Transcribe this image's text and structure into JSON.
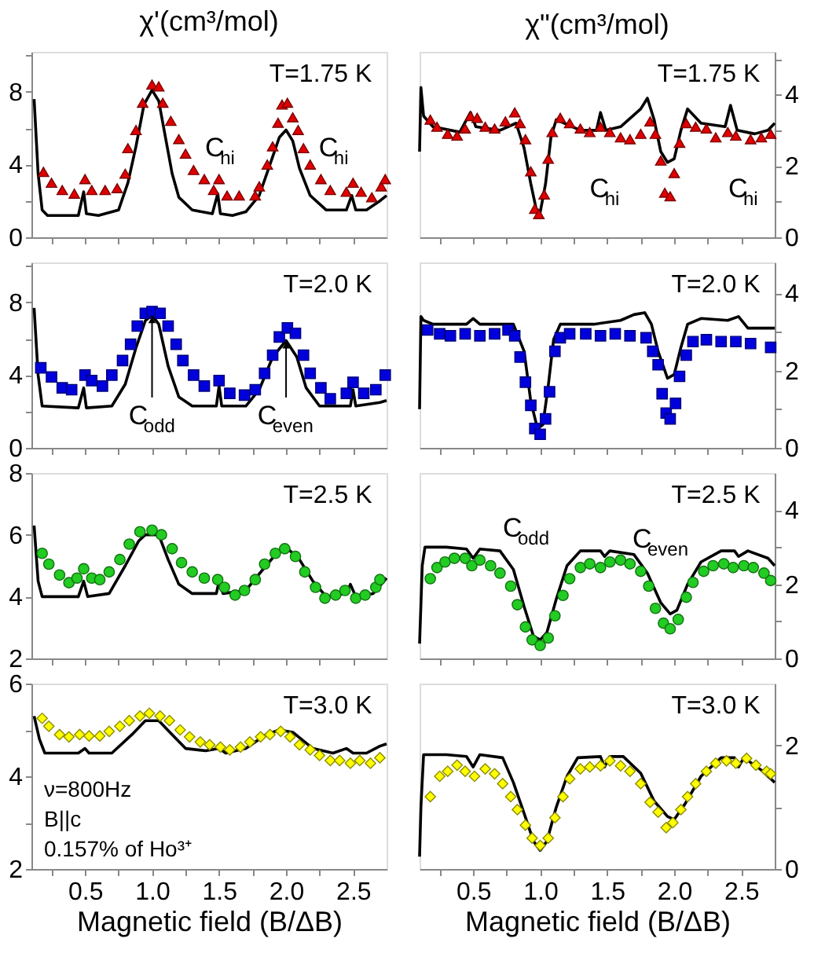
{
  "chart_data": [
    {
      "type": "scatter",
      "title": "χ'(cm³/mol)",
      "xlim": [
        0.1,
        2.75
      ],
      "ylim": [
        0,
        10.2
      ],
      "tick_labels": "y",
      "xticks": [
        {
          "value": 0.25,
          "label": null
        },
        {
          "value": 0.5,
          "label": null
        },
        {
          "value": 0.75,
          "label": null
        },
        {
          "value": 1.0,
          "label": null
        },
        {
          "value": 1.25,
          "label": null
        },
        {
          "value": 1.5,
          "label": null
        },
        {
          "value": 1.75,
          "label": null
        },
        {
          "value": 2.0,
          "label": null
        },
        {
          "value": 2.25,
          "label": null
        },
        {
          "value": 2.5,
          "label": null
        }
      ],
      "yticks": [
        0,
        {
          "value": 2,
          "label": null
        },
        4,
        {
          "value": 6,
          "label": null
        },
        8,
        {
          "value": 10,
          "label": null
        }
      ],
      "annotations": [
        "T=1.75 K",
        "C$_{hi}$",
        "C$_{hi}$"
      ],
      "series": [
        {
          "type": "line",
          "color": "#000000",
          "x": [
            0.12,
            0.15,
            0.18,
            0.22,
            0.45,
            0.49,
            0.51,
            0.6,
            0.75,
            0.82,
            0.88,
            0.94,
            1.0,
            1.05,
            1.1,
            1.15,
            1.2,
            1.3,
            1.45,
            1.49,
            1.51,
            1.6,
            1.7,
            1.8,
            1.88,
            1.95,
            2.0,
            2.05,
            2.1,
            2.18,
            2.3,
            2.45,
            2.49,
            2.52,
            2.6,
            2.7,
            2.75
          ],
          "values": [
            7.6,
            3.5,
            1.5,
            1.2,
            1.2,
            2.5,
            1.3,
            1.2,
            1.5,
            3.0,
            5.0,
            7.3,
            8.1,
            7.5,
            5.5,
            3.5,
            2.2,
            1.5,
            1.3,
            2.4,
            1.3,
            1.2,
            1.4,
            2.3,
            4.0,
            5.5,
            5.9,
            5.3,
            3.8,
            2.3,
            1.5,
            1.5,
            2.3,
            1.5,
            1.5,
            2.0,
            2.3
          ]
        },
        {
          "type": "scatter",
          "marker": "triangle",
          "color": "#e00000",
          "x": [
            0.19,
            0.25,
            0.33,
            0.42,
            0.5,
            0.55,
            0.65,
            0.74,
            0.8,
            0.82,
            0.88,
            0.93,
            1.0,
            1.05,
            1.08,
            1.14,
            1.2,
            1.25,
            1.31,
            1.39,
            1.46,
            1.5,
            1.56,
            1.65,
            1.77,
            1.8,
            1.86,
            1.9,
            1.94,
            1.97,
            2.01,
            2.05,
            2.09,
            2.13,
            2.18,
            2.26,
            2.33,
            2.45,
            2.5,
            2.56,
            2.64,
            2.71,
            2.74
          ],
          "values": [
            3.6,
            3.0,
            2.6,
            2.4,
            3.2,
            2.6,
            2.6,
            2.7,
            3.5,
            4.9,
            5.9,
            7.4,
            8.4,
            8.3,
            7.4,
            6.4,
            5.4,
            4.6,
            3.7,
            3.2,
            2.6,
            3.2,
            2.3,
            2.3,
            2.3,
            2.8,
            4.0,
            5.0,
            6.3,
            7.3,
            7.4,
            6.6,
            5.9,
            4.9,
            4.0,
            3.2,
            2.6,
            2.5,
            3.0,
            2.5,
            2.2,
            2.8,
            3.2
          ]
        }
      ]
    },
    {
      "type": "scatter",
      "title": "χ\"(cm³/mol)",
      "xlim": [
        0.1,
        2.75
      ],
      "ylim": [
        0,
        5.2
      ],
      "tick_labels": "y",
      "xticks": [
        {
          "value": 0.25,
          "label": null
        },
        {
          "value": 0.5,
          "label": null
        },
        {
          "value": 0.75,
          "label": null
        },
        {
          "value": 1.0,
          "label": null
        },
        {
          "value": 1.25,
          "label": null
        },
        {
          "value": 1.5,
          "label": null
        },
        {
          "value": 1.75,
          "label": null
        },
        {
          "value": 2.0,
          "label": null
        },
        {
          "value": 2.25,
          "label": null
        },
        {
          "value": 2.5,
          "label": null
        }
      ],
      "yticks": [
        0,
        {
          "value": 1,
          "label": null
        },
        2,
        {
          "value": 3,
          "label": null
        },
        4,
        {
          "value": 5,
          "label": null
        }
      ],
      "annotations": [
        "T=1.75 K",
        "C$_{hi}$",
        "C$_{hi}$"
      ],
      "series": [
        {
          "type": "line",
          "color": "#000000",
          "x": [
            0.1,
            0.11,
            0.13,
            0.2,
            0.4,
            0.48,
            0.52,
            0.7,
            0.82,
            0.88,
            0.93,
            0.97,
            1.0,
            1.04,
            1.08,
            1.12,
            1.3,
            1.42,
            1.45,
            1.49,
            1.6,
            1.75,
            1.8,
            1.85,
            1.9,
            1.95,
            2.0,
            2.05,
            2.1,
            2.2,
            2.38,
            2.42,
            2.47,
            2.6,
            2.7,
            2.75
          ],
          "values": [
            2.4,
            4.2,
            3.4,
            3.1,
            2.95,
            3.5,
            3.1,
            3.0,
            3.2,
            2.5,
            1.5,
            0.8,
            0.7,
            1.5,
            2.8,
            3.3,
            3.0,
            3.0,
            3.5,
            3.0,
            3.1,
            3.6,
            3.9,
            3.3,
            2.4,
            2.1,
            2.2,
            3.0,
            3.6,
            3.2,
            3.1,
            3.7,
            3.0,
            2.9,
            3.0,
            3.2
          ]
        },
        {
          "type": "scatter",
          "marker": "triangle",
          "color": "#e00000",
          "x": [
            0.18,
            0.23,
            0.31,
            0.38,
            0.44,
            0.48,
            0.53,
            0.59,
            0.66,
            0.74,
            0.81,
            0.85,
            0.89,
            0.93,
            0.96,
            0.99,
            1.03,
            1.06,
            1.09,
            1.15,
            1.22,
            1.3,
            1.37,
            1.45,
            1.52,
            1.6,
            1.67,
            1.75,
            1.82,
            1.86,
            1.9,
            1.93,
            1.97,
            2.0,
            2.04,
            2.09,
            2.16,
            2.24,
            2.31,
            2.4,
            2.46,
            2.57,
            2.65,
            2.72
          ],
          "values": [
            3.3,
            3.1,
            2.9,
            2.85,
            3.05,
            3.4,
            3.35,
            3.1,
            3.05,
            3.25,
            3.5,
            3.2,
            2.75,
            1.85,
            0.8,
            0.65,
            1.2,
            2.2,
            2.95,
            3.35,
            3.2,
            3.05,
            2.95,
            3.1,
            2.95,
            2.8,
            2.75,
            2.9,
            3.25,
            2.9,
            2.15,
            1.25,
            1.15,
            1.8,
            2.65,
            3.2,
            3.1,
            3.05,
            2.8,
            2.95,
            2.85,
            2.75,
            2.8,
            2.9
          ]
        }
      ]
    },
    {
      "type": "scatter",
      "xlim": [
        0.1,
        2.75
      ],
      "ylim": [
        0,
        10.2
      ],
      "tick_labels": "y",
      "xticks": [
        {
          "value": 0.25,
          "label": null
        },
        {
          "value": 0.5,
          "label": null
        },
        {
          "value": 0.75,
          "label": null
        },
        {
          "value": 1.0,
          "label": null
        },
        {
          "value": 1.25,
          "label": null
        },
        {
          "value": 1.5,
          "label": null
        },
        {
          "value": 1.75,
          "label": null
        },
        {
          "value": 2.0,
          "label": null
        },
        {
          "value": 2.25,
          "label": null
        },
        {
          "value": 2.5,
          "label": null
        }
      ],
      "yticks": [
        0,
        {
          "value": 2,
          "label": null
        },
        4,
        {
          "value": 6,
          "label": null
        },
        8,
        {
          "value": 10,
          "label": null
        }
      ],
      "annotations": [
        "T=2.0 K",
        {
          "text": "C$_{odd}$",
          "x": 1.0,
          "y": 7.3
        },
        {
          "text": "C$_{even}$",
          "x": 2.0,
          "y": 5.9
        }
      ],
      "series": [
        {
          "type": "line",
          "color": "#000000",
          "x": [
            0.12,
            0.15,
            0.18,
            0.45,
            0.49,
            0.51,
            0.7,
            0.8,
            0.88,
            0.95,
            1.0,
            1.05,
            1.12,
            1.2,
            1.3,
            1.48,
            1.5,
            1.52,
            1.7,
            1.8,
            1.9,
            2.0,
            2.08,
            2.15,
            2.25,
            2.48,
            2.5,
            2.52,
            2.7,
            2.75
          ],
          "values": [
            7.7,
            4.0,
            2.3,
            2.2,
            3.3,
            2.2,
            2.3,
            3.5,
            5.5,
            7.0,
            7.3,
            6.8,
            4.5,
            2.8,
            2.3,
            2.3,
            3.4,
            2.3,
            2.3,
            3.2,
            5.0,
            5.9,
            5.0,
            3.3,
            2.3,
            2.3,
            3.2,
            2.3,
            2.5,
            2.6
          ]
        },
        {
          "type": "scatter",
          "marker": "square",
          "color": "#0000dd",
          "x": [
            0.17,
            0.25,
            0.33,
            0.4,
            0.5,
            0.55,
            0.63,
            0.7,
            0.78,
            0.84,
            0.89,
            0.95,
            1.0,
            1.06,
            1.12,
            1.18,
            1.23,
            1.31,
            1.39,
            1.5,
            1.58,
            1.69,
            1.77,
            1.84,
            1.9,
            1.95,
            2.01,
            2.07,
            2.13,
            2.18,
            2.26,
            2.33,
            2.45,
            2.5,
            2.58,
            2.67,
            2.74
          ],
          "values": [
            4.4,
            3.9,
            3.3,
            3.2,
            4.0,
            3.7,
            3.4,
            4.0,
            4.8,
            5.7,
            6.7,
            7.4,
            7.5,
            7.4,
            6.7,
            5.7,
            4.8,
            4.0,
            3.4,
            3.7,
            3.0,
            2.9,
            3.2,
            4.1,
            5.1,
            6.1,
            6.6,
            6.3,
            5.1,
            4.1,
            3.3,
            2.7,
            3.0,
            3.6,
            3.0,
            3.2,
            4.0
          ]
        }
      ]
    },
    {
      "type": "scatter",
      "xlim": [
        0.1,
        2.75
      ],
      "ylim": [
        0,
        4.8
      ],
      "tick_labels": "y",
      "xticks": [
        {
          "value": 0.25,
          "label": null
        },
        {
          "value": 0.5,
          "label": null
        },
        {
          "value": 0.75,
          "label": null
        },
        {
          "value": 1.0,
          "label": null
        },
        {
          "value": 1.25,
          "label": null
        },
        {
          "value": 1.5,
          "label": null
        },
        {
          "value": 1.75,
          "label": null
        },
        {
          "value": 2.0,
          "label": null
        },
        {
          "value": 2.25,
          "label": null
        },
        {
          "value": 2.5,
          "label": null
        }
      ],
      "yticks": [
        0,
        {
          "value": 1,
          "label": null
        },
        2,
        {
          "value": 3,
          "label": null
        },
        4
      ],
      "annotations": [
        "T=2.0 K"
      ],
      "series": [
        {
          "type": "line",
          "color": "#000000",
          "x": [
            0.1,
            0.11,
            0.13,
            0.2,
            0.45,
            0.5,
            0.55,
            0.8,
            0.88,
            0.93,
            0.98,
            1.02,
            1.06,
            1.1,
            1.15,
            1.4,
            1.6,
            1.7,
            1.78,
            1.83,
            1.88,
            1.95,
            2.0,
            2.05,
            2.1,
            2.2,
            2.4,
            2.48,
            2.55,
            2.75
          ],
          "values": [
            1.0,
            3.4,
            3.3,
            3.2,
            3.2,
            3.35,
            3.2,
            3.2,
            2.5,
            1.2,
            0.5,
            0.6,
            1.6,
            2.8,
            3.2,
            3.2,
            3.3,
            3.45,
            3.5,
            3.2,
            2.5,
            1.8,
            1.9,
            2.6,
            3.2,
            3.35,
            3.3,
            3.4,
            3.1,
            3.1
          ]
        },
        {
          "type": "scatter",
          "marker": "square",
          "color": "#0000dd",
          "x": [
            0.16,
            0.25,
            0.33,
            0.44,
            0.55,
            0.66,
            0.76,
            0.81,
            0.85,
            0.89,
            0.93,
            0.96,
            1.0,
            1.04,
            1.07,
            1.11,
            1.15,
            1.22,
            1.34,
            1.45,
            1.56,
            1.67,
            1.79,
            1.84,
            1.88,
            1.91,
            1.94,
            1.97,
            2.01,
            2.04,
            2.09,
            2.14,
            2.24,
            2.35,
            2.46,
            2.57,
            2.72
          ],
          "values": [
            3.05,
            2.95,
            2.9,
            2.95,
            2.9,
            2.95,
            3.05,
            2.9,
            2.35,
            1.7,
            1.1,
            0.5,
            0.35,
            0.75,
            1.45,
            2.5,
            2.85,
            2.95,
            2.95,
            2.9,
            2.95,
            2.9,
            2.85,
            2.5,
            2.15,
            1.4,
            0.9,
            0.75,
            1.15,
            1.85,
            2.4,
            2.75,
            2.8,
            2.75,
            2.75,
            2.7,
            2.6
          ]
        }
      ]
    },
    {
      "type": "scatter",
      "xlim": [
        0.1,
        2.75
      ],
      "ylim": [
        2,
        8
      ],
      "tick_labels": "y",
      "xticks": [
        {
          "value": 0.25,
          "label": null
        },
        {
          "value": 0.5,
          "label": null
        },
        {
          "value": 0.75,
          "label": null
        },
        {
          "value": 1.0,
          "label": null
        },
        {
          "value": 1.25,
          "label": null
        },
        {
          "value": 1.5,
          "label": null
        },
        {
          "value": 1.75,
          "label": null
        },
        {
          "value": 2.0,
          "label": null
        },
        {
          "value": 2.25,
          "label": null
        },
        {
          "value": 2.5,
          "label": null
        }
      ],
      "yticks": [
        2,
        4,
        6,
        8
      ],
      "annotations": [
        "T=2.5 K"
      ],
      "series": [
        {
          "type": "line",
          "color": "#000000",
          "x": [
            0.12,
            0.15,
            0.18,
            0.45,
            0.49,
            0.52,
            0.68,
            0.8,
            0.9,
            0.95,
            1.05,
            1.12,
            1.2,
            1.3,
            1.48,
            1.5,
            1.53,
            1.7,
            1.85,
            1.95,
            2.0,
            2.1,
            2.2,
            2.3,
            2.45,
            2.48,
            2.52,
            2.65,
            2.75
          ],
          "values": [
            6.3,
            4.5,
            4.0,
            4.0,
            4.5,
            4.0,
            4.1,
            5.0,
            5.8,
            6.0,
            6.0,
            5.2,
            4.4,
            4.1,
            4.1,
            4.5,
            4.1,
            4.2,
            5.0,
            5.5,
            5.6,
            5.2,
            4.5,
            4.0,
            4.1,
            4.4,
            4.0,
            4.1,
            4.6
          ]
        },
        {
          "type": "scatter",
          "marker": "circle",
          "color": "#22cc22",
          "x": [
            0.18,
            0.23,
            0.31,
            0.38,
            0.44,
            0.49,
            0.55,
            0.61,
            0.68,
            0.76,
            0.83,
            0.91,
            1.0,
            1.07,
            1.15,
            1.22,
            1.3,
            1.39,
            1.49,
            1.54,
            1.62,
            1.69,
            1.77,
            1.84,
            1.92,
            1.99,
            2.07,
            2.14,
            2.22,
            2.29,
            2.37,
            2.44,
            2.52,
            2.59,
            2.67,
            2.7
          ],
          "values": [
            5.4,
            5.05,
            4.7,
            4.45,
            4.6,
            4.9,
            4.6,
            4.55,
            4.8,
            5.2,
            5.7,
            6.1,
            6.15,
            6.0,
            5.55,
            5.1,
            4.8,
            4.6,
            4.55,
            4.3,
            4.05,
            4.2,
            4.55,
            5.05,
            5.4,
            5.55,
            5.3,
            4.8,
            4.3,
            3.95,
            4.05,
            4.2,
            3.95,
            4.05,
            4.3,
            4.55
          ]
        }
      ]
    },
    {
      "type": "scatter",
      "xlim": [
        0.1,
        2.75
      ],
      "ylim": [
        0,
        5
      ],
      "tick_labels": "y",
      "xticks": [
        {
          "value": 0.25,
          "label": null
        },
        {
          "value": 0.5,
          "label": null
        },
        {
          "value": 0.75,
          "label": null
        },
        {
          "value": 1.0,
          "label": null
        },
        {
          "value": 1.25,
          "label": null
        },
        {
          "value": 1.5,
          "label": null
        },
        {
          "value": 1.75,
          "label": null
        },
        {
          "value": 2.0,
          "label": null
        },
        {
          "value": 2.25,
          "label": null
        },
        {
          "value": 2.5,
          "label": null
        }
      ],
      "yticks": [
        0,
        {
          "value": 1,
          "label": null
        },
        2,
        {
          "value": 3,
          "label": null
        },
        4
      ],
      "annotations": [
        "T=2.5 K",
        "C$_{odd}$",
        "C$_{even}$"
      ],
      "series": [
        {
          "type": "line",
          "color": "#000000",
          "x": [
            0.1,
            0.12,
            0.14,
            0.3,
            0.45,
            0.5,
            0.55,
            0.7,
            0.8,
            0.88,
            0.95,
            1.0,
            1.05,
            1.12,
            1.2,
            1.3,
            1.45,
            1.48,
            1.52,
            1.7,
            1.8,
            1.9,
            1.97,
            2.02,
            2.1,
            2.2,
            2.35,
            2.45,
            2.48,
            2.55,
            2.7,
            2.75
          ],
          "values": [
            0.4,
            2.5,
            3.0,
            3.0,
            2.95,
            2.7,
            2.95,
            2.9,
            2.4,
            1.4,
            0.6,
            0.5,
            0.7,
            1.6,
            2.5,
            2.9,
            2.9,
            2.75,
            2.9,
            2.8,
            2.3,
            1.5,
            1.2,
            1.3,
            2.0,
            2.6,
            2.9,
            2.9,
            2.75,
            2.9,
            2.7,
            2.5
          ]
        },
        {
          "type": "scatter",
          "marker": "circle",
          "color": "#22cc22",
          "x": [
            0.18,
            0.23,
            0.29,
            0.36,
            0.44,
            0.49,
            0.55,
            0.63,
            0.7,
            0.78,
            0.83,
            0.89,
            0.94,
            1.0,
            1.06,
            1.11,
            1.17,
            1.22,
            1.3,
            1.37,
            1.45,
            1.52,
            1.6,
            1.67,
            1.75,
            1.81,
            1.86,
            1.92,
            1.97,
            2.03,
            2.09,
            2.14,
            2.22,
            2.29,
            2.37,
            2.44,
            2.52,
            2.59,
            2.67,
            2.72
          ],
          "values": [
            2.15,
            2.45,
            2.6,
            2.7,
            2.7,
            2.5,
            2.65,
            2.5,
            2.3,
            1.95,
            1.45,
            0.85,
            0.5,
            0.35,
            0.55,
            1.15,
            1.7,
            2.15,
            2.45,
            2.55,
            2.45,
            2.6,
            2.65,
            2.55,
            2.35,
            1.95,
            1.35,
            0.95,
            0.8,
            1.05,
            1.65,
            2.05,
            2.35,
            2.5,
            2.55,
            2.45,
            2.5,
            2.45,
            2.3,
            2.1
          ]
        }
      ]
    },
    {
      "type": "scatter",
      "xlim": [
        0.1,
        2.75
      ],
      "ylim": [
        2,
        6
      ],
      "xlabel": "Magnetic field (B/ΔB)",
      "xticks": [
        {
          "value": 0.25,
          "label": null
        },
        {
          "value": 0.5,
          "label": "0.5"
        },
        {
          "value": 0.75,
          "label": null
        },
        {
          "value": 1.0,
          "label": "1.0"
        },
        {
          "value": 1.25,
          "label": null
        },
        {
          "value": 1.5,
          "label": "1.5"
        },
        {
          "value": 1.75,
          "label": null
        },
        {
          "value": 2.0,
          "label": "2.0"
        },
        {
          "value": 2.25,
          "label": null
        },
        {
          "value": 2.5,
          "label": "2.5"
        }
      ],
      "yticks": [
        2,
        {
          "value": 3,
          "label": null
        },
        4,
        {
          "value": 5,
          "label": null
        },
        6
      ],
      "annotations": [
        "T=3.0 K",
        "ν=800Hz",
        "B||c",
        "0.157% of Ho³⁺"
      ],
      "series": [
        {
          "type": "line",
          "color": "#000000",
          "x": [
            0.12,
            0.16,
            0.2,
            0.45,
            0.5,
            0.53,
            0.7,
            0.85,
            0.95,
            1.05,
            1.15,
            1.25,
            1.4,
            1.5,
            1.55,
            1.7,
            1.85,
            1.95,
            2.05,
            2.2,
            2.35,
            2.45,
            2.5,
            2.6,
            2.7,
            2.75
          ],
          "values": [
            5.3,
            4.8,
            4.5,
            4.5,
            4.6,
            4.5,
            4.5,
            4.9,
            5.2,
            5.2,
            4.9,
            4.6,
            4.55,
            4.6,
            4.5,
            4.6,
            4.9,
            5.0,
            4.95,
            4.6,
            4.5,
            4.6,
            4.5,
            4.5,
            4.65,
            4.7
          ]
        },
        {
          "type": "scatter",
          "marker": "diamond",
          "color": "#ffff00",
          "x": [
            0.18,
            0.23,
            0.31,
            0.38,
            0.46,
            0.53,
            0.61,
            0.68,
            0.76,
            0.83,
            0.91,
            0.98,
            1.06,
            1.13,
            1.21,
            1.28,
            1.36,
            1.43,
            1.51,
            1.58,
            1.66,
            1.73,
            1.81,
            1.88,
            1.96,
            2.03,
            2.1,
            2.18,
            2.25,
            2.33,
            2.4,
            2.48,
            2.55,
            2.63,
            2.7
          ],
          "values": [
            5.25,
            5.08,
            4.9,
            4.85,
            4.9,
            4.87,
            4.87,
            4.97,
            5.08,
            5.2,
            5.3,
            5.36,
            5.3,
            5.2,
            5.0,
            4.85,
            4.74,
            4.68,
            4.63,
            4.57,
            4.63,
            4.74,
            4.85,
            4.9,
            4.97,
            4.85,
            4.68,
            4.57,
            4.45,
            4.34,
            4.34,
            4.28,
            4.34,
            4.28,
            4.4
          ]
        }
      ]
    },
    {
      "type": "scatter",
      "xlim": [
        0.1,
        2.75
      ],
      "ylim": [
        0,
        3
      ],
      "xlabel": "Magnetic field (B/ΔB)",
      "xticks": [
        {
          "value": 0.25,
          "label": null
        },
        {
          "value": 0.5,
          "label": "0.5"
        },
        {
          "value": 0.75,
          "label": null
        },
        {
          "value": 1.0,
          "label": "1.0"
        },
        {
          "value": 1.25,
          "label": null
        },
        {
          "value": 1.5,
          "label": "1.5"
        },
        {
          "value": 1.75,
          "label": null
        },
        {
          "value": 2.0,
          "label": "2.0"
        },
        {
          "value": 2.25,
          "label": null
        },
        {
          "value": 2.5,
          "label": "2.5"
        }
      ],
      "yticks": [
        0,
        {
          "value": 1,
          "label": null
        },
        2
      ],
      "annotations": [
        "T=3.0 K"
      ],
      "series": [
        {
          "type": "line",
          "color": "#000000",
          "x": [
            0.1,
            0.11,
            0.13,
            0.3,
            0.45,
            0.5,
            0.55,
            0.72,
            0.8,
            0.88,
            0.95,
            1.0,
            1.05,
            1.12,
            1.2,
            1.28,
            1.45,
            1.48,
            1.52,
            1.62,
            1.75,
            1.85,
            1.95,
            2.0,
            2.08,
            2.2,
            2.35,
            2.45,
            2.48,
            2.52,
            2.65,
            2.75
          ],
          "values": [
            0.2,
            1.0,
            1.85,
            1.85,
            1.82,
            1.65,
            1.85,
            1.8,
            1.4,
            0.9,
            0.45,
            0.3,
            0.45,
            1.0,
            1.5,
            1.8,
            1.82,
            1.65,
            1.82,
            1.82,
            1.55,
            1.1,
            0.85,
            0.8,
            1.05,
            1.5,
            1.8,
            1.8,
            1.65,
            1.8,
            1.6,
            1.4
          ]
        },
        {
          "type": "scatter",
          "marker": "diamond",
          "color": "#ffff00",
          "x": [
            0.18,
            0.25,
            0.31,
            0.38,
            0.44,
            0.51,
            0.59,
            0.66,
            0.72,
            0.78,
            0.83,
            0.89,
            0.94,
            1.0,
            1.06,
            1.11,
            1.17,
            1.22,
            1.3,
            1.37,
            1.45,
            1.52,
            1.6,
            1.67,
            1.75,
            1.82,
            1.88,
            1.94,
            1.99,
            2.05,
            2.1,
            2.16,
            2.24,
            2.31,
            2.39,
            2.46,
            2.54,
            2.61,
            2.69,
            2.72
          ],
          "values": [
            1.17,
            1.5,
            1.58,
            1.68,
            1.58,
            1.5,
            1.62,
            1.54,
            1.38,
            1.17,
            0.96,
            0.71,
            0.5,
            0.38,
            0.5,
            0.83,
            1.17,
            1.46,
            1.62,
            1.65,
            1.67,
            1.75,
            1.67,
            1.58,
            1.38,
            1.08,
            0.92,
            0.67,
            0.75,
            0.96,
            1.17,
            1.38,
            1.58,
            1.71,
            1.75,
            1.71,
            1.79,
            1.68,
            1.58,
            1.54
          ]
        }
      ]
    }
  ]
}
